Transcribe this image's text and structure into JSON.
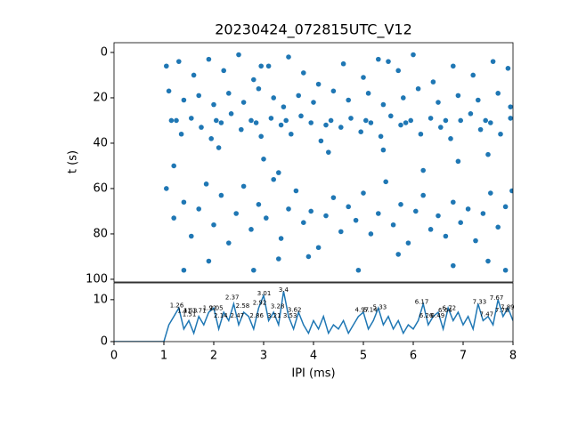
{
  "chart_data": [
    {
      "type": "scatter",
      "title": "20230424_072815UTC_V12",
      "ylabel": "t (s)",
      "color": "#1f77b4",
      "xlim": [
        0,
        8
      ],
      "ylim": [
        101.2,
        -4.3
      ],
      "yticks": [
        0,
        20,
        40,
        60,
        80,
        100
      ],
      "x": [
        1.05,
        1.3,
        1.6,
        1.9,
        2.2,
        2.5,
        2.8,
        3.1,
        3.5,
        3.8,
        4.1,
        4.6,
        5.0,
        5.3,
        5.7,
        6.0,
        6.4,
        6.8,
        7.2,
        7.6,
        7.9,
        2.95,
        5.5,
        1.1,
        1.4,
        1.7,
        2.0,
        2.3,
        2.6,
        2.9,
        3.2,
        3.4,
        3.7,
        4.0,
        4.4,
        4.7,
        5.1,
        5.4,
        5.8,
        6.1,
        6.5,
        6.9,
        7.3,
        7.7,
        7.95,
        1.15,
        1.35,
        1.55,
        1.75,
        1.95,
        2.15,
        2.35,
        2.55,
        2.75,
        2.95,
        3.15,
        3.35,
        3.55,
        3.75,
        3.95,
        4.15,
        4.35,
        4.55,
        4.75,
        4.95,
        5.15,
        5.35,
        5.55,
        5.75,
        5.95,
        6.15,
        6.35,
        6.55,
        6.75,
        6.95,
        7.15,
        7.35,
        7.55,
        7.75,
        7.95,
        1.25,
        2.05,
        2.85,
        3.45,
        4.25,
        5.05,
        5.85,
        6.65,
        7.45,
        2.1,
        3.0,
        4.3,
        5.4,
        6.2,
        7.5,
        1.2,
        3.3,
        6.9,
        1.05,
        1.2,
        1.4,
        1.55,
        1.7,
        1.85,
        2.0,
        2.15,
        2.3,
        2.45,
        2.6,
        2.75,
        2.9,
        3.05,
        3.2,
        3.35,
        3.5,
        3.65,
        3.8,
        3.95,
        4.1,
        4.25,
        4.4,
        4.55,
        4.7,
        4.85,
        5.0,
        5.15,
        5.3,
        5.45,
        5.6,
        5.75,
        5.9,
        6.05,
        6.2,
        6.35,
        6.5,
        6.65,
        6.8,
        6.95,
        7.1,
        7.25,
        7.4,
        7.55,
        7.7,
        7.85,
        7.98,
        1.4,
        1.9,
        2.8,
        3.9,
        4.9,
        5.7,
        6.8,
        7.5,
        7.85,
        3.3
      ],
      "y": [
        6,
        4,
        10,
        3,
        8,
        1,
        12,
        6,
        2,
        9,
        14,
        5,
        11,
        3,
        8,
        1,
        13,
        6,
        10,
        4,
        7,
        6,
        4,
        17,
        21,
        19,
        23,
        18,
        22,
        16,
        20,
        24,
        19,
        22,
        17,
        21,
        18,
        23,
        20,
        16,
        22,
        19,
        21,
        18,
        24,
        30,
        36,
        29,
        33,
        38,
        31,
        27,
        34,
        30,
        37,
        29,
        32,
        36,
        28,
        31,
        39,
        30,
        33,
        29,
        35,
        31,
        37,
        28,
        32,
        30,
        36,
        29,
        33,
        38,
        30,
        27,
        34,
        31,
        36,
        29,
        30,
        30,
        31,
        30,
        32,
        30,
        31,
        30,
        30,
        42,
        47,
        44,
        43,
        52,
        45,
        50,
        53,
        48,
        60,
        73,
        66,
        81,
        69,
        58,
        76,
        63,
        84,
        71,
        59,
        78,
        67,
        73,
        56,
        82,
        69,
        61,
        75,
        70,
        86,
        72,
        64,
        79,
        68,
        74,
        62,
        80,
        71,
        57,
        76,
        67,
        84,
        70,
        63,
        78,
        72,
        81,
        66,
        75,
        69,
        83,
        71,
        62,
        77,
        68,
        61,
        96,
        92,
        96,
        90,
        96,
        89,
        94,
        92,
        96,
        91
      ]
    },
    {
      "type": "line",
      "xlabel": "IPI (ms)",
      "color": "#1f77b4",
      "xlim": [
        0,
        8
      ],
      "xticks": [
        0,
        1,
        2,
        3,
        4,
        5,
        6,
        7,
        8
      ],
      "ylim": [
        0,
        14
      ],
      "yticks": [
        0,
        10
      ],
      "x": [
        0,
        1.0,
        1.1,
        1.2,
        1.3,
        1.4,
        1.5,
        1.6,
        1.7,
        1.8,
        1.9,
        2.0,
        2.1,
        2.2,
        2.3,
        2.4,
        2.5,
        2.6,
        2.7,
        2.8,
        2.9,
        3.0,
        3.1,
        3.2,
        3.3,
        3.4,
        3.5,
        3.6,
        3.7,
        3.8,
        3.9,
        4.0,
        4.1,
        4.2,
        4.3,
        4.4,
        4.5,
        4.6,
        4.7,
        4.8,
        4.9,
        5.0,
        5.1,
        5.2,
        5.3,
        5.4,
        5.5,
        5.6,
        5.7,
        5.8,
        5.9,
        6.0,
        6.1,
        6.2,
        6.3,
        6.4,
        6.5,
        6.6,
        6.7,
        6.8,
        6.9,
        7.0,
        7.1,
        7.2,
        7.3,
        7.4,
        7.5,
        7.6,
        7.7,
        7.8,
        7.9,
        8.0
      ],
      "values": [
        0,
        0,
        4,
        6,
        8,
        3,
        5,
        2,
        6,
        4,
        7,
        8,
        3,
        7,
        5,
        9,
        4,
        7,
        6,
        3,
        8,
        11,
        5,
        7,
        4,
        12,
        6,
        3,
        7,
        4,
        2,
        5,
        3,
        6,
        2,
        4,
        3,
        5,
        2,
        4,
        6,
        7,
        3,
        5,
        8,
        4,
        6,
        3,
        5,
        2,
        4,
        3,
        5,
        9,
        4,
        6,
        7,
        3,
        8,
        5,
        7,
        4,
        6,
        3,
        9,
        5,
        6,
        4,
        10,
        6,
        8,
        5
      ],
      "annotations": [
        {
          "x": 1.26,
          "y": 8.6,
          "text": "1.26"
        },
        {
          "x": 1.41,
          "y": 7.3,
          "text": "1.41"
        },
        {
          "x": 1.53,
          "y": 7.3,
          "text": "1.53"
        },
        {
          "x": 1.51,
          "y": 6.5,
          "text": "1.51"
        },
        {
          "x": 1.71,
          "y": 7.3,
          "text": "1.71"
        },
        {
          "x": 1.92,
          "y": 8.0,
          "text": "1.92"
        },
        {
          "x": 2.05,
          "y": 8.0,
          "text": "2.05"
        },
        {
          "x": 2.14,
          "y": 6.2,
          "text": "2.14"
        },
        {
          "x": 2.37,
          "y": 10.5,
          "text": "2.37"
        },
        {
          "x": 2.47,
          "y": 6.2,
          "text": "2.47"
        },
        {
          "x": 2.58,
          "y": 8.5,
          "text": "2.58"
        },
        {
          "x": 2.86,
          "y": 6.2,
          "text": "2.86"
        },
        {
          "x": 3.01,
          "y": 11.5,
          "text": "3.01"
        },
        {
          "x": 2.92,
          "y": 9.2,
          "text": "2.92"
        },
        {
          "x": 3.28,
          "y": 8.4,
          "text": "3.28"
        },
        {
          "x": 3.21,
          "y": 6.2,
          "text": "3.21"
        },
        {
          "x": 3.53,
          "y": 6.2,
          "text": "3.53"
        },
        {
          "x": 3.4,
          "y": 12.3,
          "text": "3.4"
        },
        {
          "x": 3.62,
          "y": 7.5,
          "text": "3.62"
        },
        {
          "x": 4.97,
          "y": 7.5,
          "text": "4.97"
        },
        {
          "x": 5.14,
          "y": 7.5,
          "text": "5.14"
        },
        {
          "x": 5.33,
          "y": 8.2,
          "text": "5.33"
        },
        {
          "x": 6.17,
          "y": 9.4,
          "text": "6.17"
        },
        {
          "x": 6.26,
          "y": 6.2,
          "text": "6.26"
        },
        {
          "x": 6.49,
          "y": 6.2,
          "text": "6.49"
        },
        {
          "x": 6.64,
          "y": 7.4,
          "text": "6.64"
        },
        {
          "x": 6.72,
          "y": 8.0,
          "text": "6.72"
        },
        {
          "x": 7.33,
          "y": 9.4,
          "text": "7.33"
        },
        {
          "x": 7.47,
          "y": 6.5,
          "text": "7.47"
        },
        {
          "x": 7.67,
          "y": 10.4,
          "text": "7.67"
        },
        {
          "x": 7.78,
          "y": 7.4,
          "text": "7.78"
        },
        {
          "x": 7.89,
          "y": 8.2,
          "text": "7.89"
        }
      ]
    }
  ]
}
